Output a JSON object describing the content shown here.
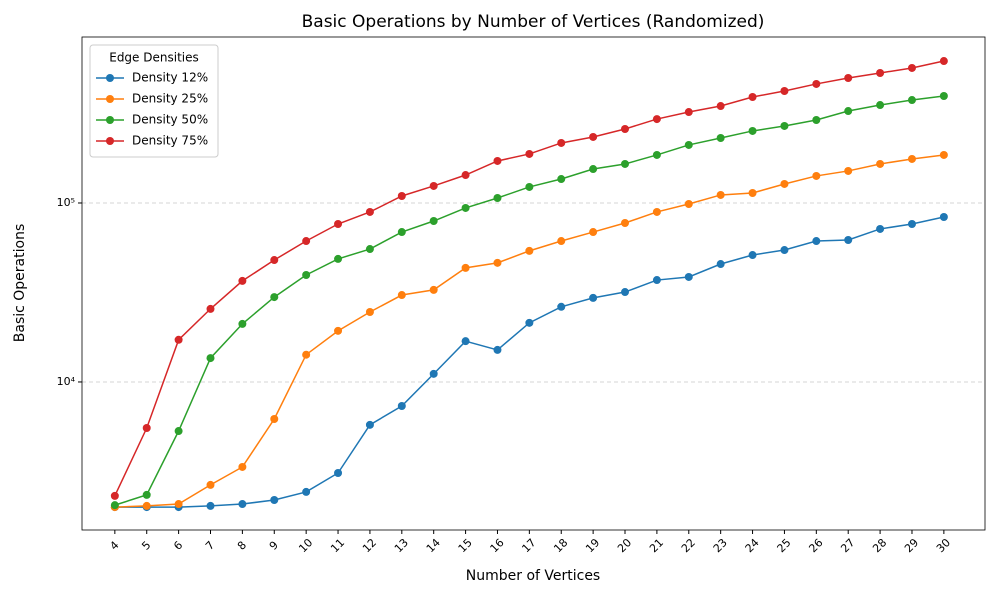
{
  "chart_data": {
    "type": "line",
    "title": "Basic Operations by Number of Vertices (Randomized)",
    "x_label": "Number of Vertices",
    "y_label": "Basic Operations",
    "x": [
      4,
      5,
      6,
      7,
      8,
      9,
      10,
      11,
      12,
      13,
      14,
      15,
      16,
      17,
      18,
      19,
      20,
      21,
      22,
      23,
      24,
      25,
      26,
      27,
      28,
      29,
      30
    ],
    "xlim": [
      2.97,
      31.29
    ],
    "ylim": [
      1489,
      846000
    ],
    "yticks": [
      {
        "value": 10000,
        "label": "10⁴"
      },
      {
        "value": 100000,
        "label": "10⁵"
      }
    ],
    "log_y": true,
    "grid": "y",
    "legend_title": "Edge Densities",
    "legend_loc": "upper left",
    "series": [
      {
        "name": "Density 12%",
        "color": "#1f77b4",
        "values": [
          2000,
          2000,
          2000,
          2030,
          2080,
          2190,
          2430,
          3100,
          5760,
          7340,
          11100,
          16900,
          15100,
          21400,
          26300,
          29500,
          31800,
          37100,
          38600,
          45600,
          51200,
          54600,
          61300,
          62100,
          71600,
          76300,
          83500
        ]
      },
      {
        "name": "Density 25%",
        "color": "#ff7f0e",
        "values": [
          2000,
          2030,
          2080,
          2660,
          3350,
          6210,
          14200,
          19300,
          24600,
          30600,
          32700,
          43400,
          46300,
          54000,
          61300,
          68800,
          77300,
          89100,
          98700,
          110900,
          113700,
          127700,
          141600,
          151000,
          165200,
          176200,
          185500
        ]
      },
      {
        "name": "Density 50%",
        "color": "#2ca02c",
        "values": [
          2050,
          2340,
          5320,
          13600,
          21100,
          29800,
          39600,
          48700,
          55300,
          68800,
          79300,
          93800,
          106600,
          122900,
          136100,
          154800,
          165200,
          185500,
          211000,
          230700,
          252600,
          269300,
          290800,
          326400,
          352600,
          376000,
          396000
        ]
      },
      {
        "name": "Density 75%",
        "color": "#d62728",
        "values": [
          2310,
          5530,
          17200,
          25600,
          36700,
          48000,
          61300,
          76300,
          89100,
          109400,
          124500,
          143300,
          171700,
          187900,
          216400,
          233800,
          259000,
          294300,
          322200,
          348100,
          391000,
          422400,
          462500,
          499300,
          532500,
          568000,
          621000
        ]
      }
    ]
  }
}
